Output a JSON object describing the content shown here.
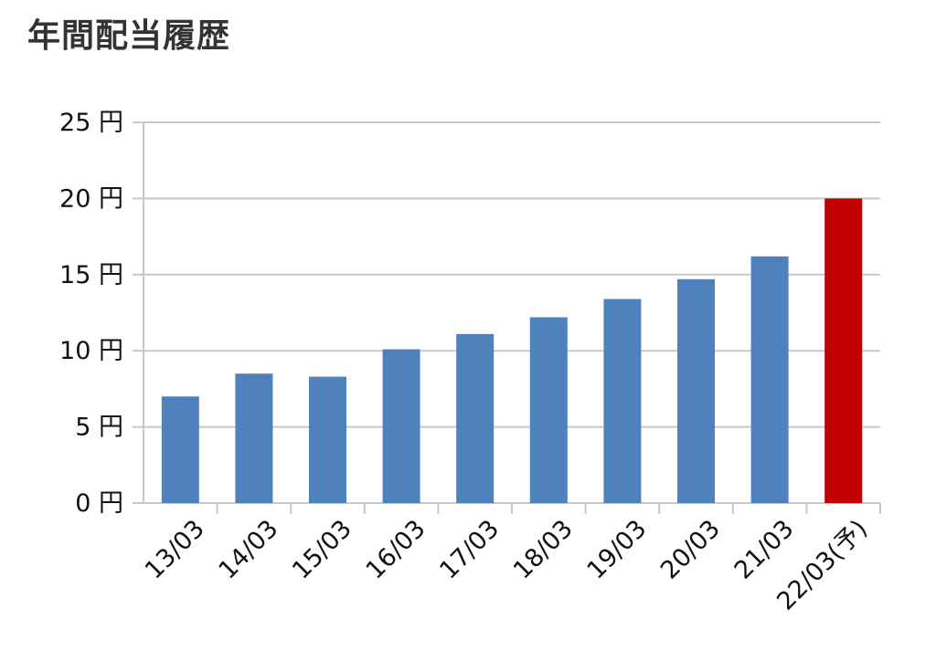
{
  "title": "年間配当履歴",
  "chart_data": {
    "type": "bar",
    "title": "年間配当履歴",
    "xlabel": "",
    "ylabel": "",
    "categories": [
      "13/03",
      "14/03",
      "15/03",
      "16/03",
      "17/03",
      "18/03",
      "19/03",
      "20/03",
      "21/03",
      "22/03(予)"
    ],
    "values": [
      7.0,
      8.5,
      8.3,
      10.1,
      11.1,
      12.2,
      13.4,
      14.7,
      16.2,
      20.0
    ],
    "bar_colors": [
      "#4f81bd",
      "#4f81bd",
      "#4f81bd",
      "#4f81bd",
      "#4f81bd",
      "#4f81bd",
      "#4f81bd",
      "#4f81bd",
      "#4f81bd",
      "#c00000"
    ],
    "ylim": [
      0,
      25
    ],
    "y_ticks": [
      0,
      5,
      10,
      15,
      20,
      25
    ],
    "y_tick_labels": [
      "0 円",
      "5 円",
      "10 円",
      "15 円",
      "20 円",
      "25 円"
    ],
    "grid": true,
    "legend": "none",
    "gridline_color": "#c8c8c8"
  }
}
